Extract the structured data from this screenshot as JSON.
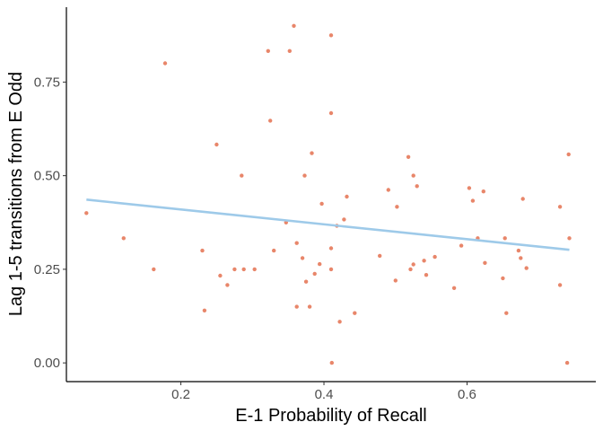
{
  "chart_data": {
    "type": "scatter",
    "xlabel": "E-1 Probability of Recall",
    "ylabel": "Lag 1-5 transitions from E Odd",
    "xlim": [
      0.04,
      0.78
    ],
    "ylim": [
      -0.05,
      0.95
    ],
    "x_ticks": [
      0.2,
      0.4,
      0.6
    ],
    "x_tick_labels": [
      "0.2",
      "0.4",
      "0.6"
    ],
    "y_ticks": [
      0.0,
      0.25,
      0.5,
      0.75
    ],
    "y_tick_labels": [
      "0.00",
      "0.25",
      "0.50",
      "0.75"
    ],
    "grid": false,
    "point_color": "#E8866A",
    "line_color": "#9ECAE9",
    "points": [
      [
        0.068,
        0.4
      ],
      [
        0.12,
        0.333
      ],
      [
        0.162,
        0.25
      ],
      [
        0.178,
        0.8
      ],
      [
        0.23,
        0.3
      ],
      [
        0.233,
        0.14
      ],
      [
        0.25,
        0.583
      ],
      [
        0.255,
        0.233
      ],
      [
        0.265,
        0.208
      ],
      [
        0.275,
        0.25
      ],
      [
        0.285,
        0.5
      ],
      [
        0.288,
        0.25
      ],
      [
        0.303,
        0.25
      ],
      [
        0.322,
        0.833
      ],
      [
        0.325,
        0.647
      ],
      [
        0.33,
        0.3
      ],
      [
        0.347,
        0.375
      ],
      [
        0.352,
        0.833
      ],
      [
        0.358,
        0.9
      ],
      [
        0.362,
        0.15
      ],
      [
        0.362,
        0.32
      ],
      [
        0.37,
        0.28
      ],
      [
        0.373,
        0.5
      ],
      [
        0.375,
        0.217
      ],
      [
        0.38,
        0.15
      ],
      [
        0.383,
        0.56
      ],
      [
        0.387,
        0.238
      ],
      [
        0.394,
        0.264
      ],
      [
        0.397,
        0.425
      ],
      [
        0.41,
        0.875
      ],
      [
        0.41,
        0.667
      ],
      [
        0.41,
        0.306
      ],
      [
        0.41,
        0.25
      ],
      [
        0.411,
        0.0
      ],
      [
        0.418,
        0.366
      ],
      [
        0.422,
        0.11
      ],
      [
        0.428,
        0.383
      ],
      [
        0.432,
        0.444
      ],
      [
        0.443,
        0.133
      ],
      [
        0.478,
        0.286
      ],
      [
        0.49,
        0.462
      ],
      [
        0.5,
        0.22
      ],
      [
        0.502,
        0.417
      ],
      [
        0.518,
        0.55
      ],
      [
        0.521,
        0.25
      ],
      [
        0.525,
        0.263
      ],
      [
        0.525,
        0.5
      ],
      [
        0.53,
        0.472
      ],
      [
        0.54,
        0.273
      ],
      [
        0.543,
        0.235
      ],
      [
        0.555,
        0.283
      ],
      [
        0.582,
        0.2
      ],
      [
        0.592,
        0.313
      ],
      [
        0.603,
        0.467
      ],
      [
        0.608,
        0.433
      ],
      [
        0.615,
        0.333
      ],
      [
        0.623,
        0.458
      ],
      [
        0.625,
        0.267
      ],
      [
        0.65,
        0.226
      ],
      [
        0.653,
        0.333
      ],
      [
        0.655,
        0.133
      ],
      [
        0.672,
        0.3
      ],
      [
        0.675,
        0.28
      ],
      [
        0.678,
        0.438
      ],
      [
        0.683,
        0.253
      ],
      [
        0.73,
        0.417
      ],
      [
        0.73,
        0.208
      ],
      [
        0.74,
        0.0
      ],
      [
        0.742,
        0.557
      ],
      [
        0.743,
        0.333
      ]
    ],
    "trendline": {
      "x": [
        0.068,
        0.743
      ],
      "y": [
        0.436,
        0.302
      ]
    }
  }
}
